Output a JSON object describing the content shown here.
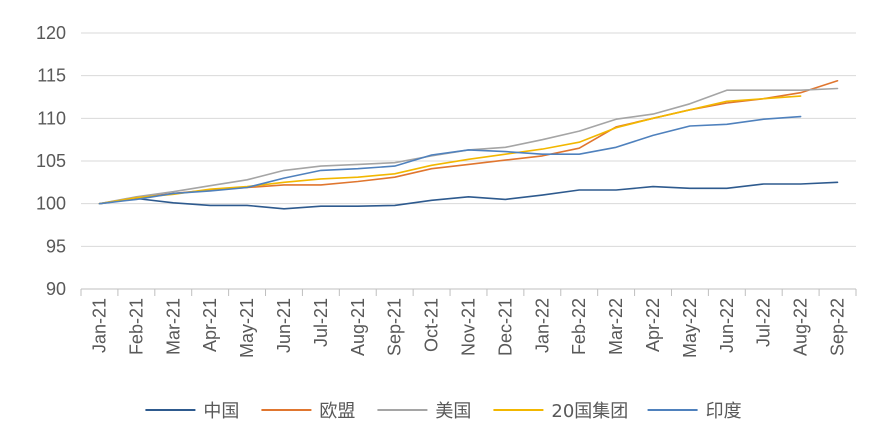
{
  "chart_data": {
    "type": "line",
    "title": "",
    "xlabel": "",
    "ylabel": "",
    "ylim": [
      90,
      120
    ],
    "yticks": [
      90,
      95,
      100,
      105,
      110,
      115,
      120
    ],
    "grid": "horizontal",
    "legend_position": "bottom",
    "categories": [
      "Jan-21",
      "Feb-21",
      "Mar-21",
      "Apr-21",
      "May-21",
      "Jun-21",
      "Jul-21",
      "Aug-21",
      "Sep-21",
      "Oct-21",
      "Nov-21",
      "Dec-21",
      "Jan-22",
      "Feb-22",
      "Mar-22",
      "Apr-22",
      "May-22",
      "Jun-22",
      "Jul-22",
      "Aug-22",
      "Sep-22"
    ],
    "series": [
      {
        "name": "中国",
        "color": "#2E5A8E",
        "values": [
          100,
          100.6,
          100.1,
          99.8,
          99.8,
          99.4,
          99.7,
          99.7,
          99.8,
          100.4,
          100.8,
          100.5,
          101.0,
          101.6,
          101.6,
          102.0,
          101.8,
          101.8,
          102.3,
          102.3,
          102.5
        ]
      },
      {
        "name": "欧盟",
        "color": "#E0762F",
        "values": [
          100,
          100.7,
          101.2,
          101.6,
          101.9,
          102.2,
          102.2,
          102.6,
          103.1,
          104.1,
          104.6,
          105.1,
          105.6,
          106.5,
          109.0,
          110.0,
          111.0,
          111.8,
          112.3,
          113.0,
          114.4
        ]
      },
      {
        "name": "美国",
        "color": "#A5A5A5",
        "values": [
          100,
          100.8,
          101.4,
          102.1,
          102.8,
          103.9,
          104.4,
          104.6,
          104.8,
          105.6,
          106.3,
          106.6,
          107.5,
          108.5,
          109.9,
          110.5,
          111.7,
          113.3,
          113.3,
          113.3,
          113.5
        ]
      },
      {
        "name": "20国集团",
        "color": "#F2B700",
        "values": [
          100,
          100.7,
          101.1,
          101.7,
          102.0,
          102.5,
          102.9,
          103.1,
          103.5,
          104.5,
          105.2,
          105.8,
          106.4,
          107.2,
          108.9,
          110.0,
          111.0,
          112.0,
          112.3,
          112.6,
          null
        ]
      },
      {
        "name": "印度",
        "color": "#4F81BD",
        "values": [
          100,
          100.5,
          101.2,
          101.5,
          101.9,
          103.0,
          103.9,
          104.1,
          104.4,
          105.7,
          106.3,
          106.1,
          105.8,
          105.8,
          106.6,
          108.0,
          109.1,
          109.3,
          109.9,
          110.2,
          null
        ]
      }
    ]
  }
}
